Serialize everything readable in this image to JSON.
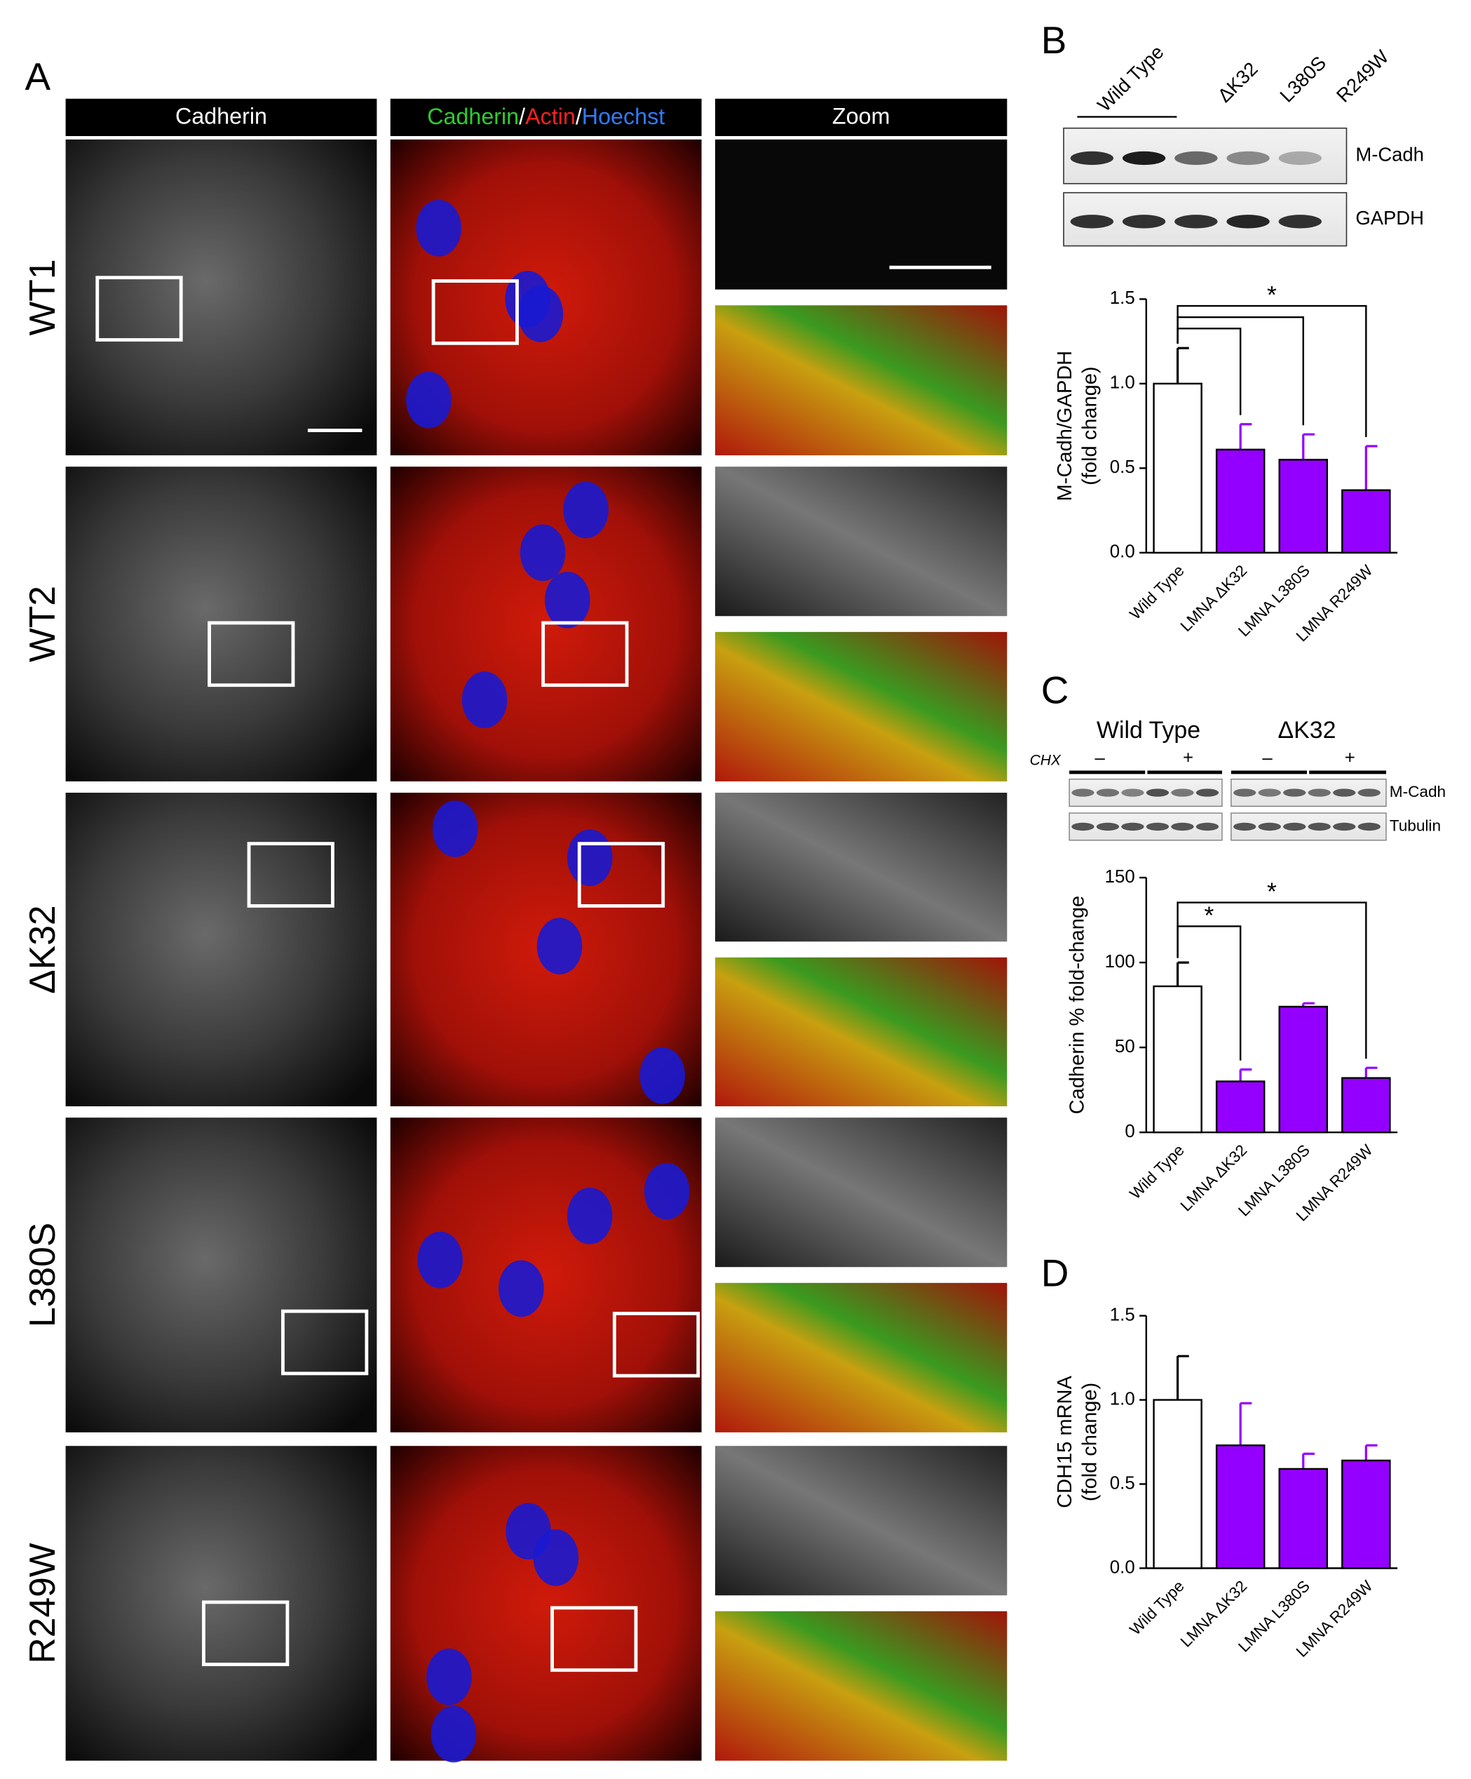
{
  "panel_a": {
    "label": "A",
    "headers": [
      "Cadherin",
      [
        "Cadherin",
        "/",
        "Actin",
        "/",
        "Hoechst"
      ],
      "Zoom"
    ],
    "rows": [
      "WT1",
      "WT2",
      "ΔK32",
      "L380S",
      "R249W"
    ]
  },
  "panel_b": {
    "label": "B",
    "lanes": [
      "Wild Type",
      "ΔK32",
      "L380S",
      "R249W"
    ],
    "blots": [
      "M-Cadh",
      "GAPDH"
    ]
  },
  "panel_c": {
    "label": "C",
    "groups": [
      "Wild Type",
      "ΔK32"
    ],
    "treatment": "CHX",
    "signs": [
      "–",
      "+",
      "–",
      "+"
    ],
    "blots": [
      "M-Cadh",
      "Tubulin"
    ]
  },
  "panel_d": {
    "label": "D"
  },
  "chart_data": [
    {
      "type": "bar",
      "ylabel": [
        "M-Cadh/GAPDH",
        "(fold change)"
      ],
      "categories": [
        "Wild Type",
        "LMNA ΔK32",
        "LMNA L380S",
        "LMNA R249W"
      ],
      "values": [
        1.0,
        0.61,
        0.55,
        0.37
      ],
      "errors": [
        0.21,
        0.15,
        0.15,
        0.26
      ],
      "colors": [
        "#ffffff",
        "#9400ff",
        "#9400ff",
        "#9400ff"
      ],
      "ylim": [
        0,
        1.5
      ],
      "yticks": [
        {
          "value": 0,
          "label": "0.0"
        },
        {
          "value": 0.5,
          "label": "0.5"
        },
        {
          "value": 1,
          "label": "1.0"
        },
        {
          "value": 1.5,
          "label": "1.5"
        }
      ],
      "annotations": [
        "*"
      ]
    },
    {
      "type": "bar",
      "ylabel": [
        "Cadherin % fold-change"
      ],
      "categories": [
        "Wild Type",
        "LMNA ΔK32",
        "LMNA L380S",
        "LMNA R249W"
      ],
      "values": [
        86,
        30,
        74,
        32
      ],
      "errors": [
        14,
        7,
        2,
        6
      ],
      "colors": [
        "#ffffff",
        "#9400ff",
        "#9400ff",
        "#9400ff"
      ],
      "ylim": [
        0,
        150
      ],
      "yticks": [
        0,
        50,
        100,
        150
      ],
      "annotations": [
        "*",
        "*"
      ]
    },
    {
      "type": "bar",
      "ylabel": [
        "CDH15 mRNA",
        "(fold change)"
      ],
      "categories": [
        "Wild Type",
        "LMNA ΔK32",
        "LMNA L380S",
        "LMNA R249W"
      ],
      "values": [
        1.0,
        0.73,
        0.59,
        0.64
      ],
      "errors": [
        0.26,
        0.25,
        0.09,
        0.09
      ],
      "colors": [
        "#ffffff",
        "#9400ff",
        "#9400ff",
        "#9400ff"
      ],
      "ylim": [
        0,
        1.5
      ],
      "yticks": [
        {
          "value": 0,
          "label": "0.0"
        },
        {
          "value": 0.5,
          "label": "0.5"
        },
        {
          "value": 1,
          "label": "1.0"
        },
        {
          "value": 1.5,
          "label": "1.5"
        }
      ]
    }
  ]
}
